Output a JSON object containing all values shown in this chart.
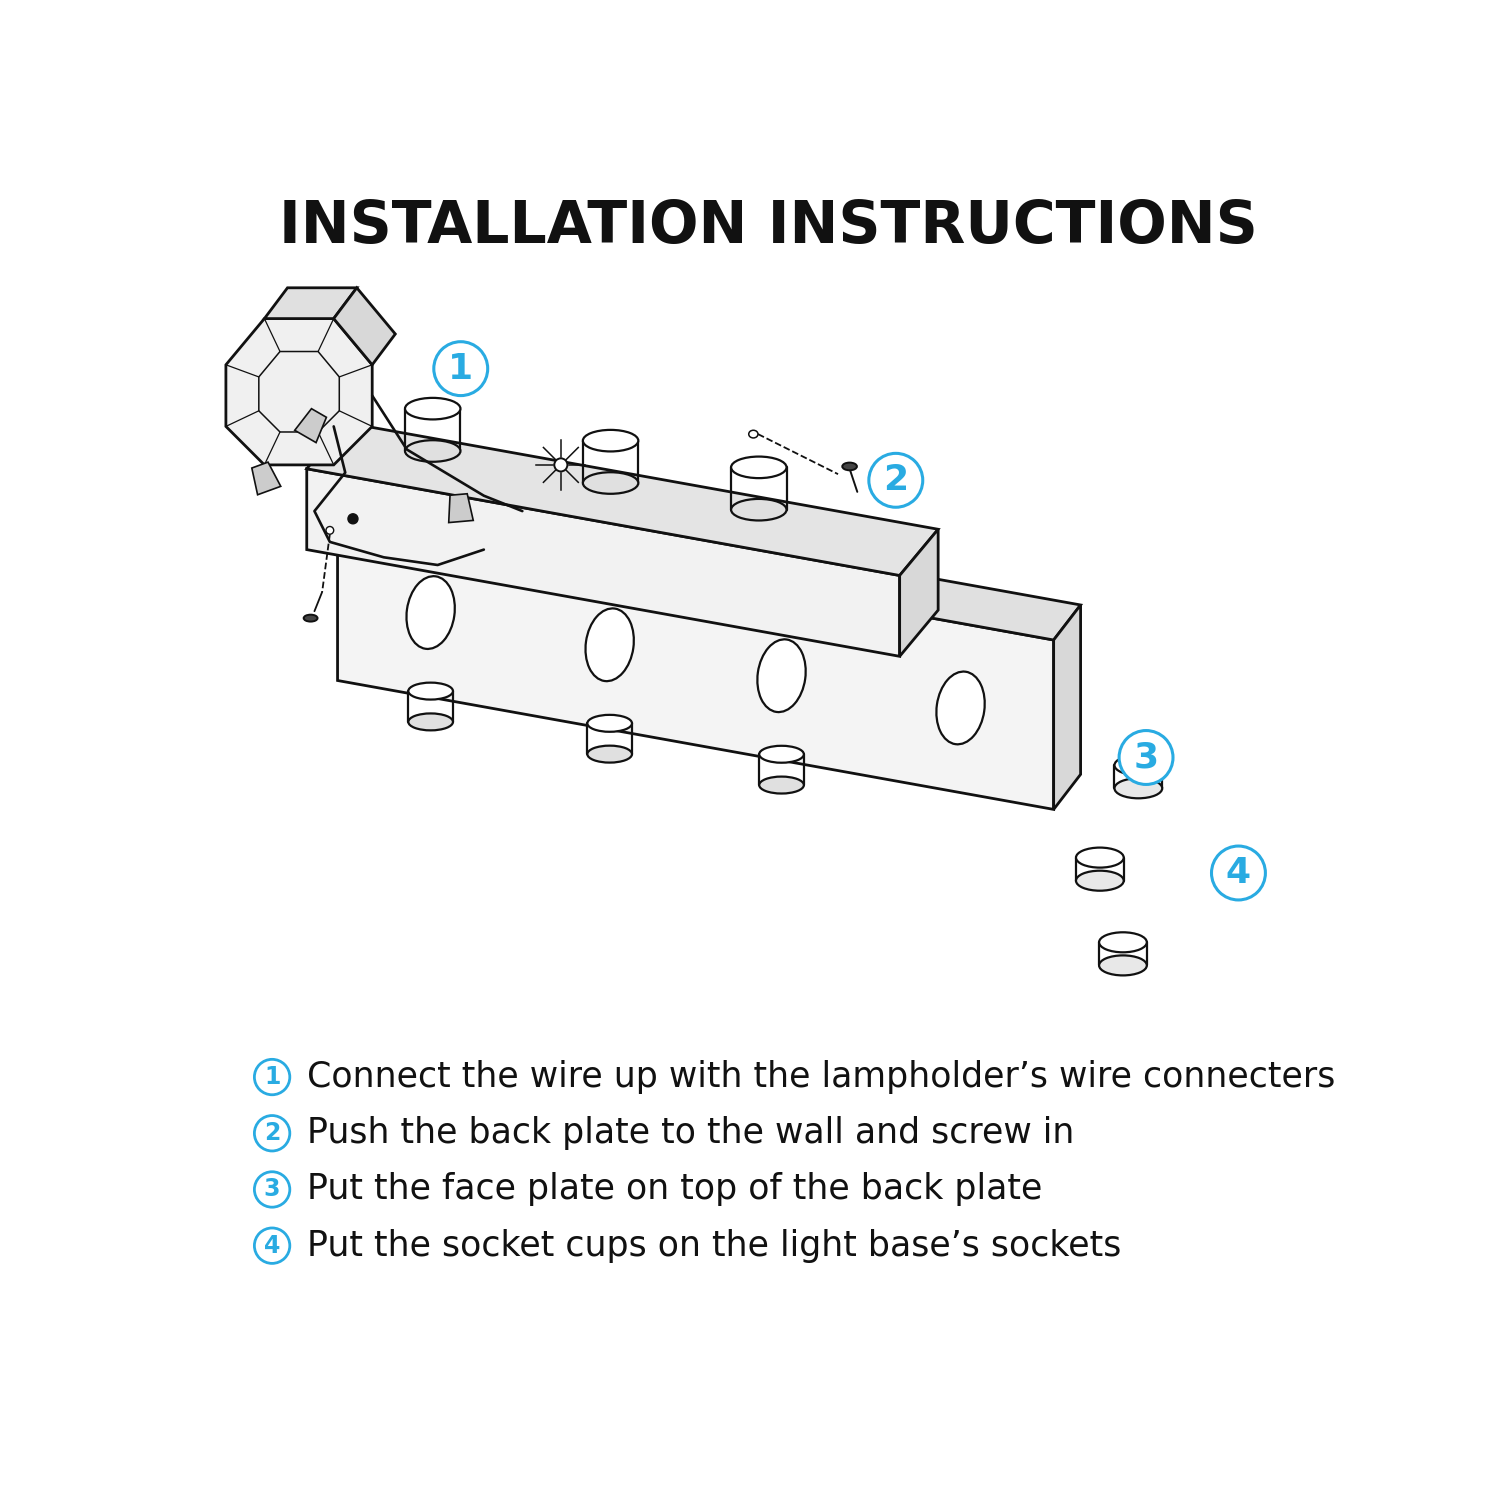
{
  "title": "INSTALLATION INSTRUCTIONS",
  "title_fontsize": 42,
  "bg_color": "#ffffff",
  "cyan": "#29abe2",
  "black": "#111111",
  "steps": [
    "Connect the wire up with the lampholder’s wire connecters",
    "Push the back plate to the wall and screw in",
    "Put the face plate on top of the back plate",
    "Put the socket cups on the light base’s sockets"
  ],
  "step_numbers": [
    "1",
    "2",
    "3",
    "4"
  ],
  "step_fontsize": 25,
  "callout_fontsize": 26,
  "callout_r": 0.35,
  "callout_lw": 2.2,
  "lw": 1.6,
  "lwt": 2.0,
  "lww": 1.9
}
